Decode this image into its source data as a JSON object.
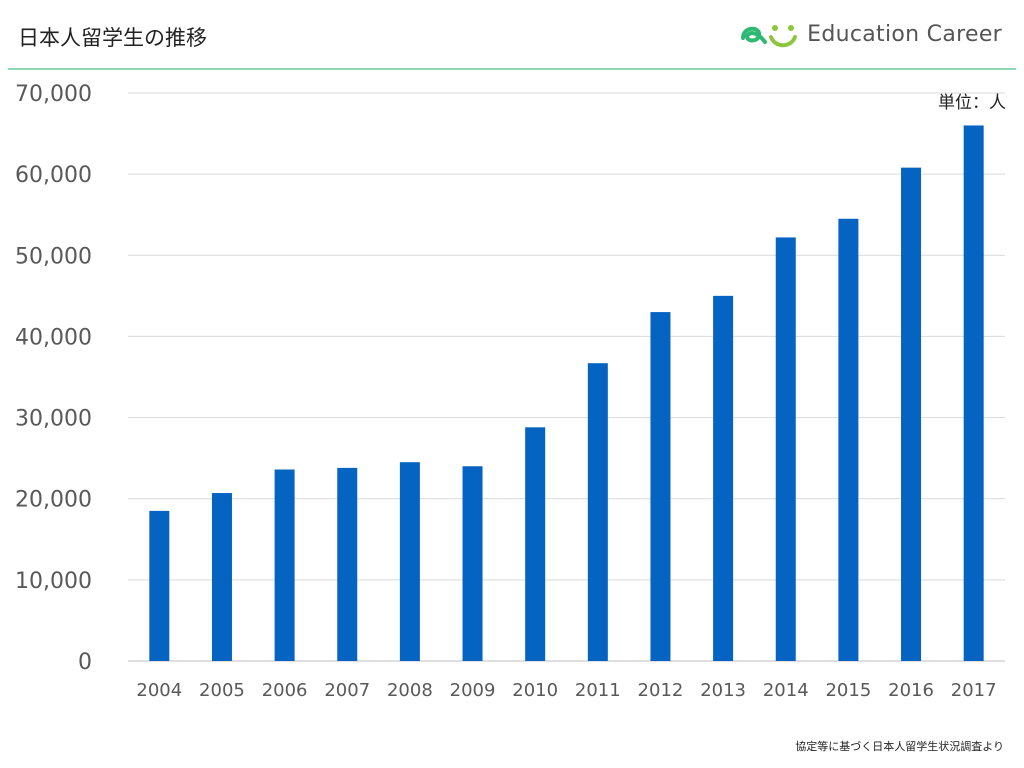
{
  "header": {
    "title": "日本人留学生の推移",
    "brand_name": "Education Career"
  },
  "colors": {
    "bar": "#0563c1",
    "grid": "#d9d9d9",
    "axis_text": "#595959",
    "header_rule": "#8ed6b4",
    "brand_green": "#2eb872",
    "brand_lime": "#8cc63f"
  },
  "icons": {
    "brand_logo": "education-career-logo-icon"
  },
  "chart_data": {
    "type": "bar",
    "title": "",
    "xlabel": "",
    "ylabel": "",
    "unit_label": "単位：人",
    "categories": [
      "2004",
      "2005",
      "2006",
      "2007",
      "2008",
      "2009",
      "2010",
      "2011",
      "2012",
      "2013",
      "2014",
      "2015",
      "2016",
      "2017"
    ],
    "values": [
      18500,
      20700,
      23600,
      23800,
      24500,
      24000,
      28800,
      36700,
      43000,
      45000,
      52200,
      54500,
      60800,
      66000
    ],
    "ylim": [
      0,
      70000
    ],
    "yticks": [
      0,
      10000,
      20000,
      30000,
      40000,
      50000,
      60000,
      70000
    ],
    "ytick_labels": [
      "0",
      "10,000",
      "20,000",
      "30,000",
      "40,000",
      "50,000",
      "60,000",
      "70,000"
    ],
    "grid": true,
    "legend": "none"
  },
  "footer": {
    "source": "協定等に基づく日本人留学生状況調査より"
  }
}
